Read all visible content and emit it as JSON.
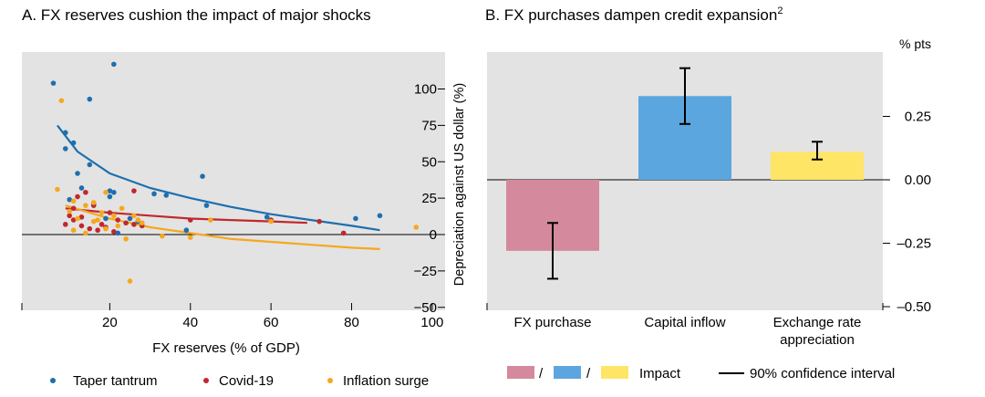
{
  "chart_data": [
    {
      "type": "scatter",
      "title": "A. FX reserves cushion the impact of major shocks",
      "xlabel": "FX reserves (% of GDP)",
      "ylabel": "Depreciation against US dollar (%)",
      "xlim": [
        0,
        105
      ],
      "ylim": [
        -55,
        125
      ],
      "x_ticks": [
        20,
        40,
        60,
        80,
        100
      ],
      "y_ticks": [
        -50,
        -25,
        0,
        25,
        50,
        75,
        100
      ],
      "grid": false,
      "legend_position": "bottom",
      "series": [
        {
          "name": "Taper tantrum",
          "color": "#1d6fae",
          "points": [
            [
              6,
              104
            ],
            [
              21,
              117
            ],
            [
              15,
              93
            ],
            [
              9,
              70
            ],
            [
              11,
              63
            ],
            [
              9,
              59
            ],
            [
              15,
              48
            ],
            [
              12,
              42
            ],
            [
              13,
              32
            ],
            [
              20,
              30
            ],
            [
              21,
              29
            ],
            [
              20,
              26
            ],
            [
              31,
              28
            ],
            [
              34,
              27
            ],
            [
              43,
              40
            ],
            [
              44,
              20
            ],
            [
              59,
              12
            ],
            [
              81,
              11
            ],
            [
              87,
              13
            ],
            [
              16,
              21
            ],
            [
              27,
              9
            ],
            [
              25,
              11
            ],
            [
              19,
              11
            ],
            [
              22,
              1
            ],
            [
              39,
              3
            ],
            [
              10,
              24
            ]
          ],
          "trend": [
            [
              7,
              75
            ],
            [
              12,
              57
            ],
            [
              20,
              42
            ],
            [
              30,
              32
            ],
            [
              40,
              25
            ],
            [
              50,
              19
            ],
            [
              60,
              14
            ],
            [
              70,
              10
            ],
            [
              80,
              6
            ],
            [
              87,
              3
            ]
          ]
        },
        {
          "name": "Covid-19",
          "color": "#c0282d",
          "points": [
            [
              26,
              30
            ],
            [
              14,
              29
            ],
            [
              12,
              26
            ],
            [
              11,
              18
            ],
            [
              10,
              13
            ],
            [
              11,
              10
            ],
            [
              13,
              12
            ],
            [
              9,
              7
            ],
            [
              16,
              20
            ],
            [
              18,
              7
            ],
            [
              19,
              5
            ],
            [
              21,
              2
            ],
            [
              22,
              10
            ],
            [
              26,
              7
            ],
            [
              24,
              8
            ],
            [
              28,
              6
            ],
            [
              40,
              10
            ],
            [
              60,
              10
            ],
            [
              72,
              9
            ],
            [
              78,
              1
            ],
            [
              15,
              4
            ],
            [
              13,
              6
            ],
            [
              17,
              3
            ],
            [
              20,
              15
            ]
          ],
          "trend": [
            [
              9,
              18
            ],
            [
              20,
              15
            ],
            [
              30,
              13
            ],
            [
              40,
              11
            ],
            [
              50,
              10
            ],
            [
              60,
              9
            ],
            [
              69,
              8
            ]
          ]
        },
        {
          "name": "Inflation surge",
          "color": "#f5a81e",
          "points": [
            [
              8,
              92
            ],
            [
              7,
              31
            ],
            [
              11,
              23
            ],
            [
              10,
              16
            ],
            [
              12,
              11
            ],
            [
              14,
              20
            ],
            [
              16,
              22
            ],
            [
              18,
              15
            ],
            [
              19,
              29
            ],
            [
              21,
              13
            ],
            [
              23,
              18
            ],
            [
              26,
              13
            ],
            [
              27,
              10
            ],
            [
              16,
              9
            ],
            [
              11,
              3
            ],
            [
              14,
              1
            ],
            [
              17,
              10
            ],
            [
              24,
              -3
            ],
            [
              25,
              -32
            ],
            [
              33,
              -1
            ],
            [
              40,
              -2
            ],
            [
              45,
              10
            ],
            [
              96,
              5
            ],
            [
              60,
              9
            ],
            [
              22,
              6
            ],
            [
              28,
              8
            ],
            [
              19,
              4
            ]
          ],
          "trend": [
            [
              9,
              20
            ],
            [
              20,
              11
            ],
            [
              30,
              5
            ],
            [
              40,
              1
            ],
            [
              50,
              -3
            ],
            [
              60,
              -5
            ],
            [
              70,
              -7
            ],
            [
              80,
              -9
            ],
            [
              87,
              -10
            ]
          ]
        }
      ],
      "y_tick_labels": [
        "−50",
        "−25",
        "0",
        "25",
        "50",
        "75",
        "100"
      ]
    },
    {
      "type": "bar",
      "title": "B. FX purchases dampen credit expansion",
      "title_superscript": "2",
      "unit_label": "% pts",
      "categories": [
        "FX purchase",
        "Capital inflow",
        "Exchange rate appreciation"
      ],
      "category_lines": [
        [
          "FX purchase"
        ],
        [
          "Capital inflow"
        ],
        [
          "Exchange rate",
          "appreciation"
        ]
      ],
      "values": [
        -0.28,
        0.33,
        0.11
      ],
      "ci_low": [
        -0.39,
        0.22,
        0.08
      ],
      "ci_high": [
        -0.17,
        0.44,
        0.15
      ],
      "colors": [
        "#d48a9c",
        "#5ba6de",
        "#ffe566"
      ],
      "ylim": [
        -0.52,
        0.5
      ],
      "y_ticks": [
        -0.5,
        -0.25,
        0,
        0.25
      ],
      "y_tick_labels": [
        "–0.50",
        "–0.25",
        "0.00",
        "0.25"
      ],
      "legend": {
        "separator": "/",
        "impact_label": "Impact",
        "ci_label": "90% confidence interval"
      }
    }
  ]
}
